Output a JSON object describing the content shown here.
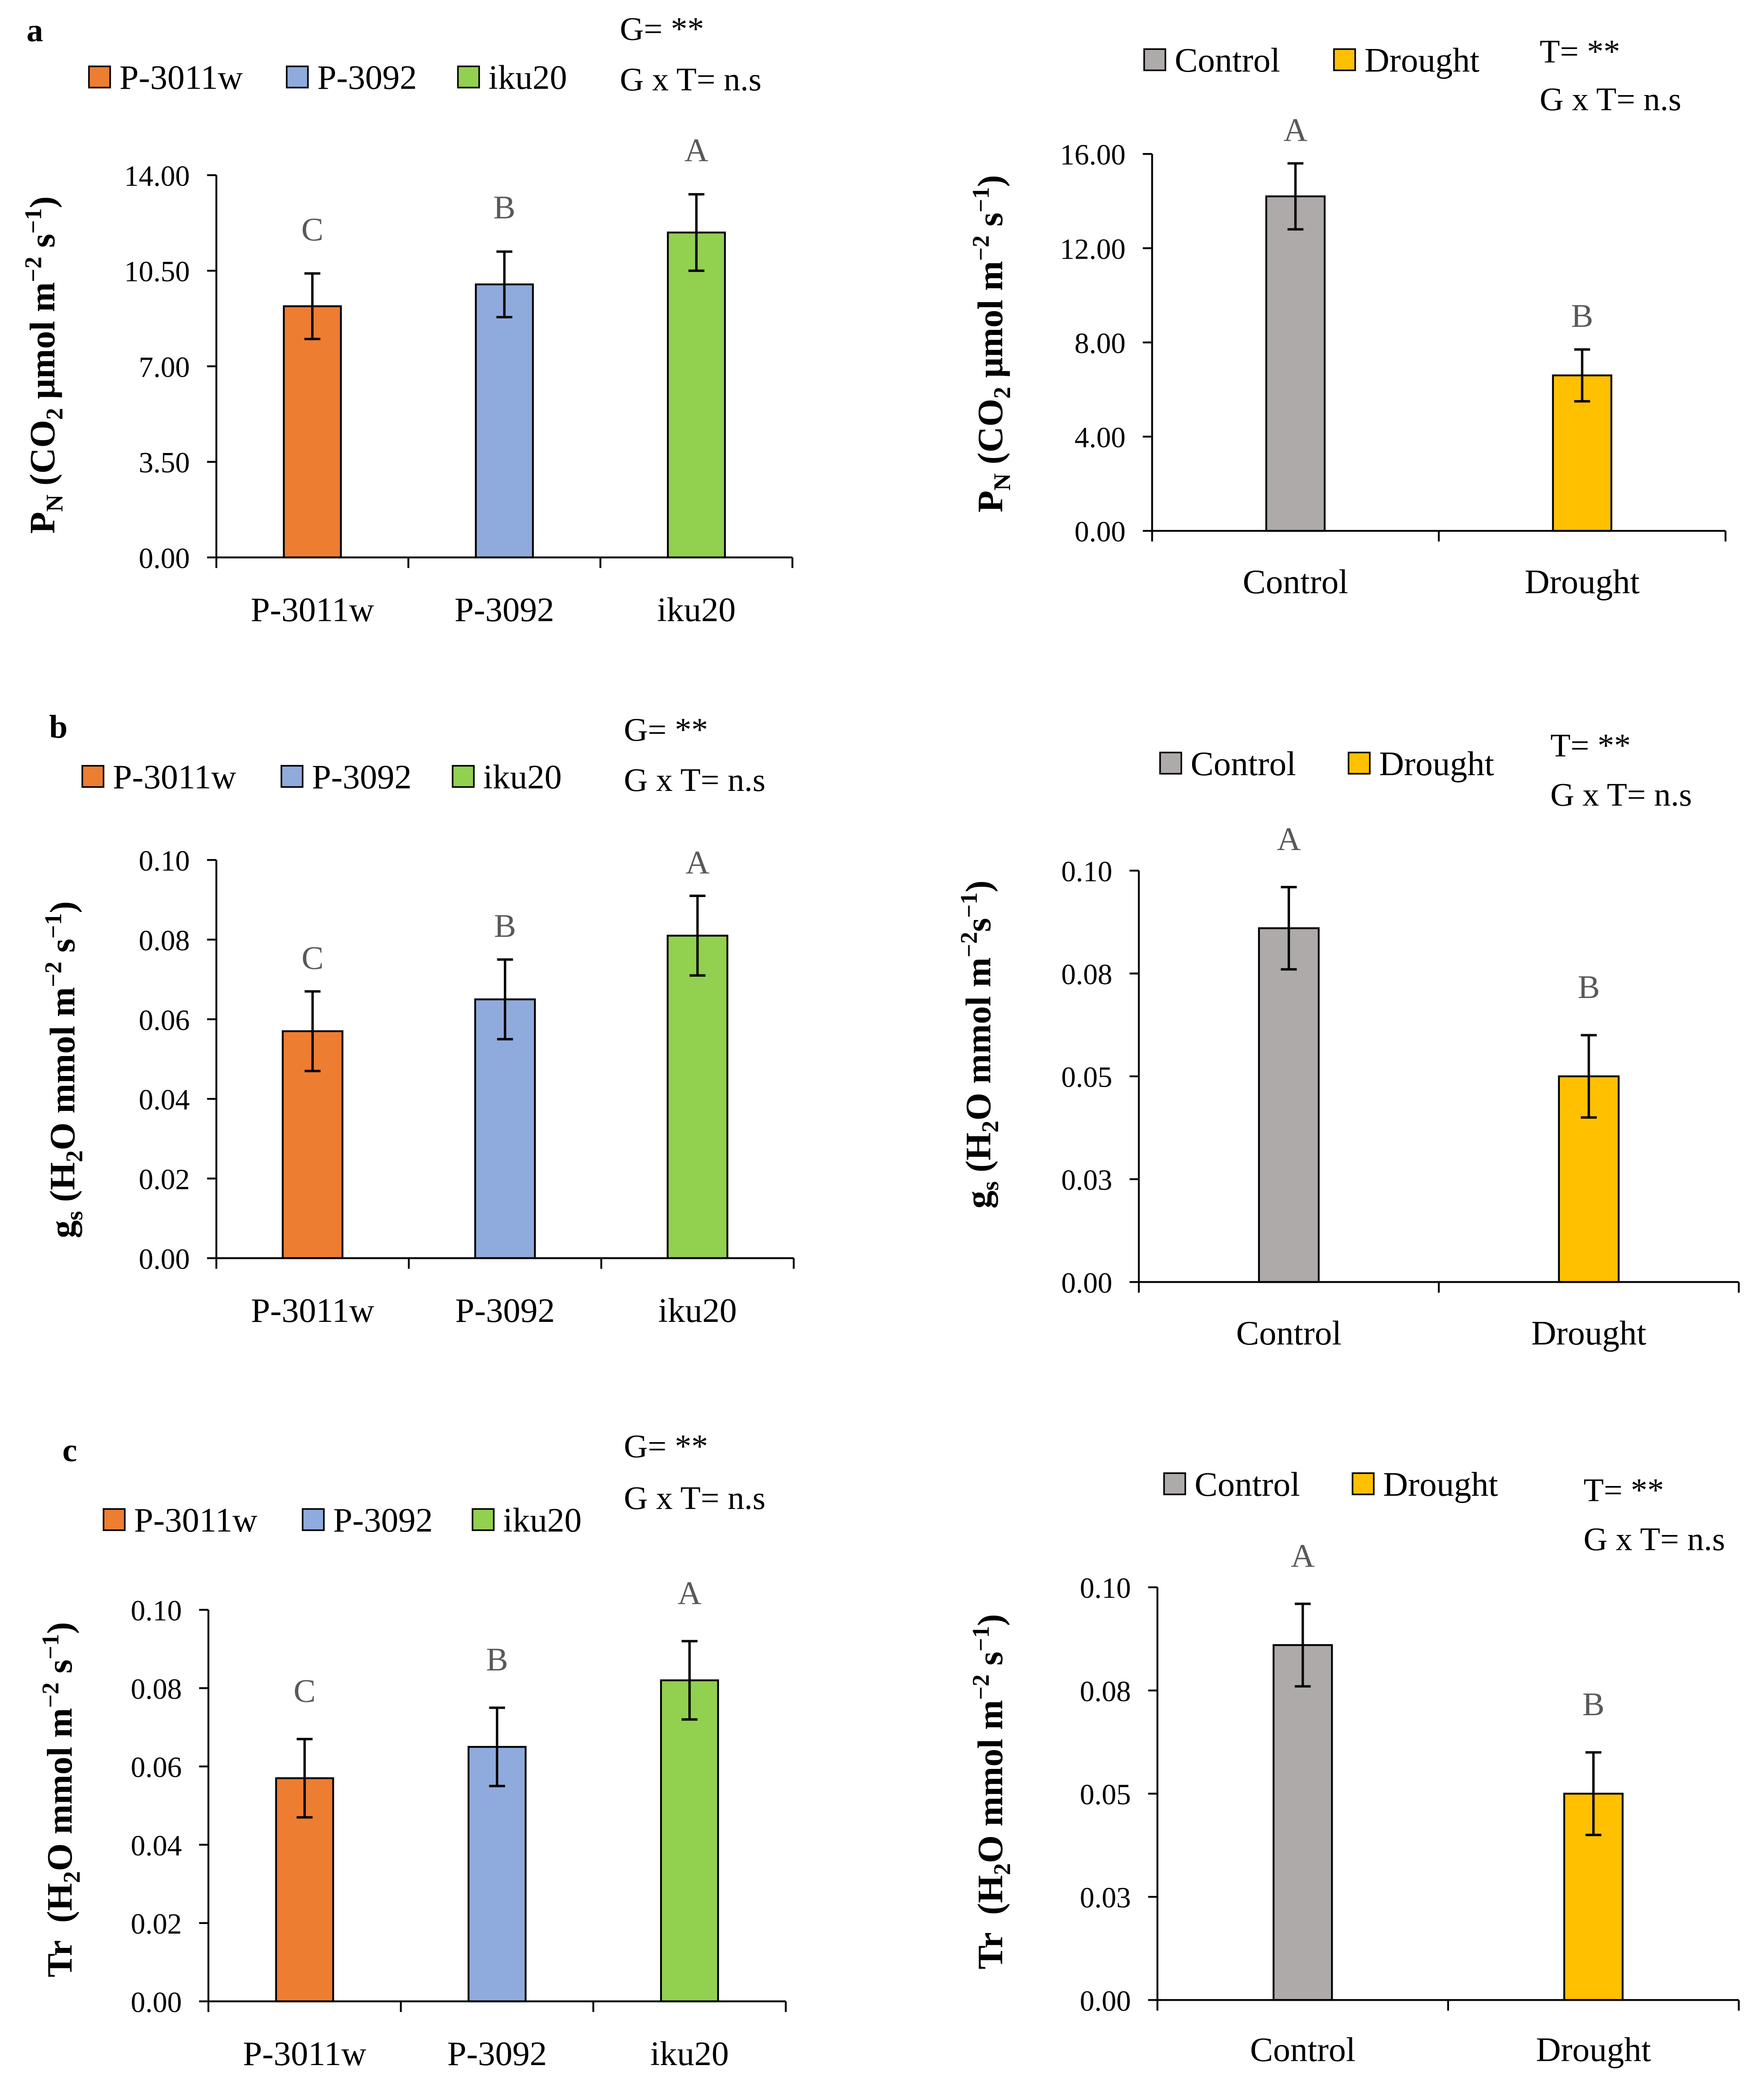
{
  "chart_data": [
    {
      "type": "bar",
      "panel_label": "a",
      "categories": [
        "P-3011w",
        "P-3092",
        "iku20"
      ],
      "values": [
        9.2,
        10.0,
        11.9
      ],
      "errors": [
        1.2,
        1.2,
        1.4
      ],
      "letters": [
        "C",
        "B",
        "A"
      ],
      "bar_colors": [
        "#ED7D31",
        "#8FAADC",
        "#92D050"
      ],
      "legend": [
        "P-3011w",
        "P-3092",
        "iku20"
      ],
      "legend_placement": "top",
      "annotations": [
        "G= **",
        "G x T= n.s"
      ],
      "ylabel": [
        {
          "base": "P"
        },
        {
          "sub": "N"
        },
        {
          "base": " (CO"
        },
        {
          "sub": "2"
        },
        {
          "base": " μmol m"
        },
        {
          "sup": "−2"
        },
        {
          "base": " s"
        },
        {
          "sup": "−1"
        },
        {
          "base": ")"
        }
      ],
      "ylim": [
        0,
        14
      ],
      "yticks": [
        0,
        3.5,
        7,
        10.5,
        14
      ],
      "ytick_labels": [
        "0.00",
        "3.50",
        "7.00",
        "10.50",
        "14.00"
      ],
      "grid": false
    },
    {
      "type": "bar",
      "categories": [
        "Control",
        "Drought"
      ],
      "values": [
        14.2,
        6.6
      ],
      "errors": [
        1.4,
        1.1
      ],
      "letters": [
        "A",
        "B"
      ],
      "bar_colors": [
        "#AEAAAA",
        "#FFC000"
      ],
      "legend": [
        "Control",
        "Drought"
      ],
      "legend_placement": "top",
      "annotations": [
        "T= **",
        "G x T= n.s"
      ],
      "ylabel": [
        {
          "base": "P"
        },
        {
          "sub": "N"
        },
        {
          "base": " (CO"
        },
        {
          "sub": "2"
        },
        {
          "base": " μmol m"
        },
        {
          "sup": "−2"
        },
        {
          "base": " s"
        },
        {
          "sup": "−1"
        },
        {
          "base": ")"
        }
      ],
      "ylim": [
        0,
        16
      ],
      "yticks": [
        0,
        4,
        8,
        12,
        16
      ],
      "ytick_labels": [
        "0.00",
        "4.00",
        "8.00",
        "12.00",
        "16.00"
      ],
      "grid": false
    },
    {
      "type": "bar",
      "panel_label": "b",
      "categories": [
        "P-3011w",
        "P-3092",
        "iku20"
      ],
      "values": [
        0.057,
        0.065,
        0.081
      ],
      "errors": [
        0.01,
        0.01,
        0.01
      ],
      "letters": [
        "C",
        "B",
        "A"
      ],
      "bar_colors": [
        "#ED7D31",
        "#8FAADC",
        "#92D050"
      ],
      "legend": [
        "P-3011w",
        "P-3092",
        "iku20"
      ],
      "legend_placement": "top",
      "annotations": [
        "G= **",
        "G x T= n.s"
      ],
      "ylabel": [
        {
          "base": "g"
        },
        {
          "sub": "s"
        },
        {
          "base": " (H"
        },
        {
          "sub": "2"
        },
        {
          "base": "O mmol m"
        },
        {
          "sup": "−2"
        },
        {
          "base": " s"
        },
        {
          "sup": "−1"
        },
        {
          "base": ")"
        }
      ],
      "ylim": [
        0,
        0.1
      ],
      "yticks": [
        0,
        0.02,
        0.04,
        0.06,
        0.08,
        0.1
      ],
      "ytick_labels": [
        "0.00",
        "0.02",
        "0.04",
        "0.06",
        "0.08",
        "0.10"
      ],
      "grid": false
    },
    {
      "type": "bar",
      "categories": [
        "Control",
        "Drought"
      ],
      "values": [
        0.086,
        0.05
      ],
      "errors": [
        0.01,
        0.01
      ],
      "letters": [
        "A",
        "B"
      ],
      "bar_colors": [
        "#AEAAAA",
        "#FFC000"
      ],
      "legend": [
        "Control",
        "Drought"
      ],
      "legend_placement": "top",
      "annotations": [
        "T= **",
        "G x T= n.s"
      ],
      "ylabel": [
        {
          "base": "g"
        },
        {
          "sub": "s"
        },
        {
          "base": " (H"
        },
        {
          "sub": "2"
        },
        {
          "base": "O mmol m"
        },
        {
          "sup": "−2"
        },
        {
          "base": "s"
        },
        {
          "sup": "−1"
        },
        {
          "base": ")"
        }
      ],
      "ylim": [
        0,
        0.1
      ],
      "yticks": [
        0,
        0.025,
        0.05,
        0.075,
        0.1
      ],
      "ytick_labels": [
        "0.00",
        "0.03",
        "0.05",
        "0.08",
        "0.10"
      ],
      "grid": false
    },
    {
      "type": "bar",
      "panel_label": "c",
      "categories": [
        "P-3011w",
        "P-3092",
        "iku20"
      ],
      "values": [
        0.057,
        0.065,
        0.082
      ],
      "errors": [
        0.01,
        0.01,
        0.01
      ],
      "letters": [
        "C",
        "B",
        "A"
      ],
      "bar_colors": [
        "#ED7D31",
        "#8FAADC",
        "#92D050"
      ],
      "legend": [
        "P-3011w",
        "P-3092",
        "iku20"
      ],
      "legend_placement": "top",
      "annotations": [
        "G= **",
        "G x T= n.s"
      ],
      "ylabel": [
        {
          "base": "Tr  (H"
        },
        {
          "sub": "2"
        },
        {
          "base": "O mmol m"
        },
        {
          "sup": "−2"
        },
        {
          "base": " s"
        },
        {
          "sup": "−1"
        },
        {
          "base": ")"
        }
      ],
      "ylim": [
        0,
        0.1
      ],
      "yticks": [
        0,
        0.02,
        0.04,
        0.06,
        0.08,
        0.1
      ],
      "ytick_labels": [
        "0.00",
        "0.02",
        "0.04",
        "0.06",
        "0.08",
        "0.10"
      ],
      "grid": false
    },
    {
      "type": "bar",
      "categories": [
        "Control",
        "Drought"
      ],
      "values": [
        0.086,
        0.05
      ],
      "errors": [
        0.01,
        0.01
      ],
      "letters": [
        "A",
        "B"
      ],
      "bar_colors": [
        "#AEAAAA",
        "#FFC000"
      ],
      "legend": [
        "Control",
        "Drought"
      ],
      "legend_placement": "top",
      "annotations": [
        "T= **",
        "G x T= n.s"
      ],
      "ylabel": [
        {
          "base": "Tr  (H"
        },
        {
          "sub": "2"
        },
        {
          "base": "O mmol m"
        },
        {
          "sup": "−2"
        },
        {
          "base": " s"
        },
        {
          "sup": "−1"
        },
        {
          "base": ")"
        }
      ],
      "ylim": [
        0,
        0.1
      ],
      "yticks": [
        0,
        0.025,
        0.05,
        0.075,
        0.1
      ],
      "ytick_labels": [
        "0.00",
        "0.03",
        "0.05",
        "0.08",
        "0.10"
      ],
      "grid": false
    }
  ]
}
